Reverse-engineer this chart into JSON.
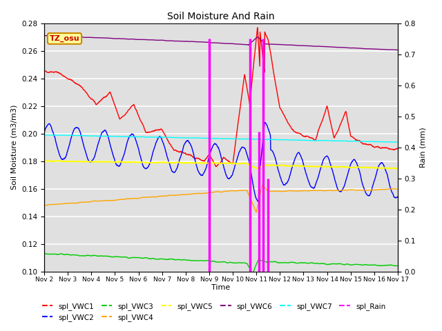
{
  "title": "Soil Moisture And Rain",
  "xlabel": "Time",
  "ylabel_left": "Soil Moisture (m3/m3)",
  "ylabel_right": "Rain (mm)",
  "xlim": [
    0,
    15
  ],
  "ylim_left": [
    0.1,
    0.28
  ],
  "ylim_right": [
    0.0,
    0.8
  ],
  "x_tick_labels": [
    "Nov 2",
    "Nov 3",
    "Nov 4",
    "Nov 5",
    "Nov 6",
    "Nov 7",
    "Nov 8",
    "Nov 9",
    "Nov 10",
    "Nov 11",
    "Nov 12",
    "Nov 13",
    "Nov 14",
    "Nov 15",
    "Nov 16",
    "Nov 17"
  ],
  "yticks_left": [
    0.1,
    0.12,
    0.14,
    0.16,
    0.18,
    0.2,
    0.22,
    0.24,
    0.26,
    0.28
  ],
  "yticks_right": [
    0.0,
    0.1,
    0.2,
    0.3,
    0.4,
    0.5,
    0.6,
    0.7,
    0.8
  ],
  "colors": {
    "vwc1": "red",
    "vwc2": "blue",
    "vwc3": "#00cc00",
    "vwc4": "orange",
    "vwc5": "yellow",
    "vwc6": "purple",
    "vwc7": "cyan",
    "rain": "magenta"
  },
  "rain_events": [
    [
      7.0,
      0.75
    ],
    [
      8.72,
      0.75
    ],
    [
      9.12,
      0.45
    ],
    [
      9.3,
      0.75
    ],
    [
      9.48,
      0.3
    ]
  ],
  "annotation": {
    "text": "TZ_osu",
    "bg": "#ffff99",
    "border": "#cc8800"
  }
}
